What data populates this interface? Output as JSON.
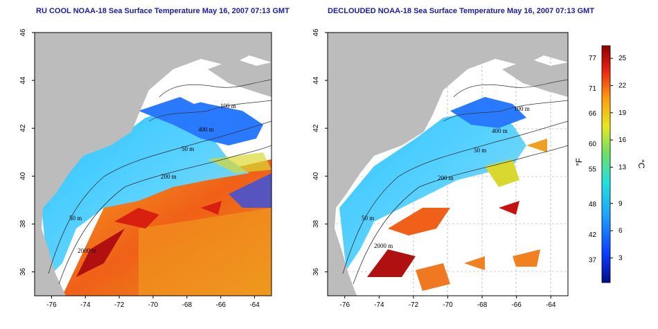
{
  "maps": [
    {
      "id": "left",
      "title": "RU COOL NOAA-18 Sea Surface Temperature May 16, 2007 07:13 GMT",
      "contour_labels": [
        "100 m",
        "400 m",
        "50 m",
        "200 m",
        "50 m",
        "2000 m"
      ]
    },
    {
      "id": "right",
      "title": "DECLOUDED NOAA-18 Sea Surface Temperature May 16, 2007 07:13 GMT",
      "contour_labels": [
        "100 m",
        "400 m",
        "50 m",
        "200 m",
        "50 m",
        "2000 m"
      ]
    }
  ],
  "axes": {
    "x_ticks": [
      "-76",
      "-74",
      "-72",
      "-70",
      "-68",
      "-66",
      "-64"
    ],
    "y_ticks": [
      "36",
      "38",
      "40",
      "42",
      "44",
      "46"
    ],
    "lon_range": [
      -77,
      -63
    ],
    "lat_range": [
      35,
      46
    ]
  },
  "colorbar": {
    "fahrenheit_ticks": [
      "77",
      "71",
      "66",
      "60",
      "55",
      "48",
      "42",
      "37"
    ],
    "celsius_ticks": [
      "25",
      "22",
      "19",
      "16",
      "13",
      "9",
      "6",
      "3"
    ],
    "f_unit": "°F",
    "c_unit": "°C"
  },
  "colors": {
    "land": "#bcbcbc",
    "title": "#1a1aa6",
    "warm": "#d8201a",
    "cool": "#1e64ff"
  }
}
